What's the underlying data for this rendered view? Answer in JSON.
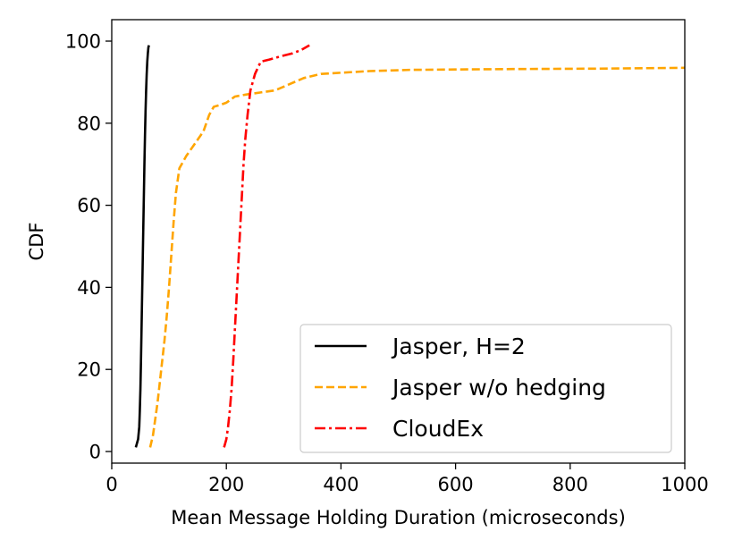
{
  "chart_data": {
    "type": "line",
    "title": "",
    "xlabel": "Mean Message Holding Duration (microseconds)",
    "ylabel": "CDF",
    "xlim": [
      0,
      1000
    ],
    "ylim": [
      0,
      100
    ],
    "xticks": [
      "0",
      "200",
      "400",
      "600",
      "800",
      "1000"
    ],
    "yticks": [
      "0",
      "20",
      "40",
      "60",
      "80",
      "100"
    ],
    "grid": false,
    "legend_position": "lower-right",
    "series": [
      {
        "name": "Jasper, H=2",
        "color": "#000000",
        "style": "solid",
        "x": [
          42,
          46,
          48,
          49,
          50,
          51,
          52,
          53,
          54,
          55,
          56,
          57,
          58,
          59,
          60,
          61,
          62,
          63,
          64,
          65
        ],
        "y": [
          1,
          3,
          6,
          10,
          15,
          22,
          30,
          38,
          46,
          54,
          62,
          70,
          77,
          83,
          88,
          92,
          95,
          97,
          98.5,
          99
        ]
      },
      {
        "name": "Jasper w/o hedging",
        "color": "#ffa500",
        "style": "dashed",
        "x": [
          67,
          72,
          76,
          80,
          84,
          88,
          92,
          96,
          100,
          104,
          108,
          112,
          118,
          130,
          145,
          160,
          170,
          178,
          190,
          200,
          215,
          235,
          260,
          285,
          310,
          335,
          365,
          400,
          450,
          520,
          700,
          850,
          1000
        ],
        "y": [
          1,
          4,
          8,
          12,
          17,
          22,
          27,
          33,
          40,
          48,
          56,
          63,
          69,
          72,
          75,
          78,
          82,
          84,
          84.5,
          85,
          86.5,
          87,
          87.5,
          88,
          89.5,
          91,
          92,
          92.3,
          92.7,
          93,
          93.2,
          93.3,
          93.5
        ]
      },
      {
        "name": "CloudEx",
        "color": "#ff0000",
        "style": "dashdot",
        "x": [
          196,
          200,
          203,
          206,
          209,
          212,
          215,
          218,
          221,
          224,
          227,
          230,
          233,
          237,
          242,
          250,
          260,
          275,
          295,
          315,
          330,
          345
        ],
        "y": [
          1,
          3,
          6,
          10,
          15,
          22,
          30,
          38,
          46,
          54,
          62,
          70,
          76,
          82,
          88,
          92,
          95,
          95.5,
          96.3,
          97,
          97.8,
          99
        ]
      }
    ]
  }
}
